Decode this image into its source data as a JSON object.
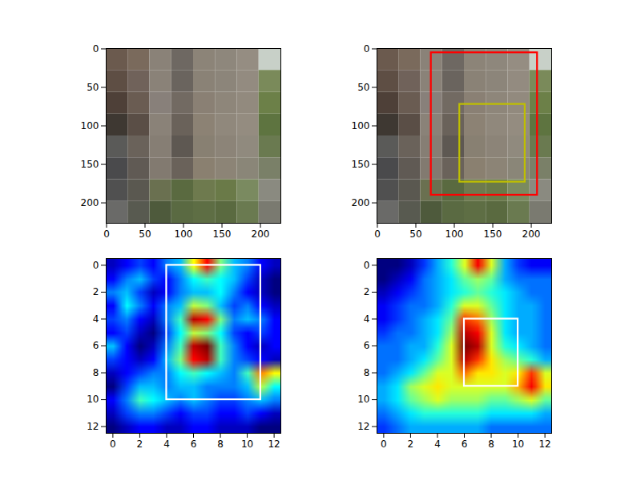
{
  "chart_data": [
    {
      "type": "image",
      "xlim": [
        -0.5,
        226.5
      ],
      "ylim": [
        226.5,
        -0.5
      ],
      "xticks": [
        0,
        50,
        100,
        150,
        200
      ],
      "yticks": [
        0,
        50,
        100,
        150,
        200
      ],
      "pixels": [
        [
          "#6b5a4e",
          "#7a6a5c",
          "#8a8278",
          "#6e6862",
          "#8c8478",
          "#8e877c",
          "#958d82",
          "#c8d0c8"
        ],
        [
          "#5e4e44",
          "#70625a",
          "#8a8278",
          "#6a645e",
          "#8a8276",
          "#8c857a",
          "#938b80",
          "#7a8a5a"
        ],
        [
          "#4e4038",
          "#6a5c52",
          "#88807a",
          "#726a62",
          "#8a8074",
          "#8e867a",
          "#928a7e",
          "#6c8048"
        ],
        [
          "#3e3832",
          "#5a4e46",
          "#8a8278",
          "#6a625a",
          "#8c8274",
          "#90887c",
          "#948c80",
          "#5e7440"
        ],
        [
          "#5a5a58",
          "#6a625a",
          "#867e74",
          "#5e5852",
          "#888072",
          "#8c8478",
          "#908a7e",
          "#6a7a50"
        ],
        [
          "#4a4a4c",
          "#605a54",
          "#827a70",
          "#6a625a",
          "#8a8070",
          "#8c8476",
          "#8a8678",
          "#7a8068"
        ],
        [
          "#505050",
          "#5a5850",
          "#6a7050",
          "#5a6a40",
          "#6e7a4e",
          "#6a7a48",
          "#7a8a60",
          "#8a8a80"
        ],
        [
          "#6a6a68",
          "#585a50",
          "#4e5a3c",
          "#5a6a42",
          "#5e6e44",
          "#5a6a40",
          "#6a7a50",
          "#7a7a70"
        ]
      ],
      "boxes": []
    },
    {
      "type": "image",
      "xlim": [
        -0.5,
        226.5
      ],
      "ylim": [
        226.5,
        -0.5
      ],
      "xticks": [
        0,
        50,
        100,
        150,
        200
      ],
      "yticks": [
        0,
        50,
        100,
        150,
        200
      ],
      "pixels": [
        [
          "#6b5a4e",
          "#7a6a5c",
          "#8a8278",
          "#6e6862",
          "#8c8478",
          "#8e877c",
          "#958d82",
          "#c8d0c8"
        ],
        [
          "#5e4e44",
          "#70625a",
          "#8a8278",
          "#6a645e",
          "#8a8276",
          "#8c857a",
          "#938b80",
          "#7a8a5a"
        ],
        [
          "#4e4038",
          "#6a5c52",
          "#88807a",
          "#726a62",
          "#8a8074",
          "#8e867a",
          "#928a7e",
          "#6c8048"
        ],
        [
          "#3e3832",
          "#5a4e46",
          "#8a8278",
          "#6a625a",
          "#8c8274",
          "#90887c",
          "#948c80",
          "#5e7440"
        ],
        [
          "#5a5a58",
          "#6a625a",
          "#867e74",
          "#5e5852",
          "#888072",
          "#8c8478",
          "#908a7e",
          "#6a7a50"
        ],
        [
          "#4a4a4c",
          "#605a54",
          "#827a70",
          "#6a625a",
          "#8a8070",
          "#8c8476",
          "#8a8678",
          "#7a8068"
        ],
        [
          "#505050",
          "#5a5850",
          "#6a7050",
          "#5a6a40",
          "#6e7a4e",
          "#6a7a48",
          "#7a8a60",
          "#8a8a80"
        ],
        [
          "#6a6a68",
          "#585a50",
          "#4e5a3c",
          "#5a6a42",
          "#5e6e44",
          "#5a6a40",
          "#6a7a50",
          "#7a7a70"
        ]
      ],
      "boxes": [
        {
          "x1": 70,
          "x2": 208,
          "y1": 5,
          "y2": 190,
          "color": "#ff0000"
        },
        {
          "x1": 107,
          "x2": 192,
          "y1": 72,
          "y2": 173,
          "color": "#bfbf00"
        }
      ]
    },
    {
      "type": "heatmap",
      "xlim": [
        -0.5,
        12.5
      ],
      "ylim": [
        12.5,
        -0.5
      ],
      "xticks": [
        0,
        2,
        4,
        6,
        8,
        10,
        12
      ],
      "yticks": [
        0,
        2,
        4,
        6,
        8,
        10,
        12
      ],
      "cells": [
        [
          0.15,
          0.2,
          0.25,
          0.2,
          0.3,
          0.35,
          0.6,
          0.8,
          0.5,
          0.35,
          0.3,
          0.2,
          0.15
        ],
        [
          0.2,
          0.3,
          0.35,
          0.25,
          0.2,
          0.3,
          0.4,
          0.45,
          0.4,
          0.35,
          0.25,
          0.15,
          0.1
        ],
        [
          0.3,
          0.35,
          0.25,
          0.15,
          0.2,
          0.3,
          0.35,
          0.35,
          0.4,
          0.3,
          0.2,
          0.15,
          0.1
        ],
        [
          0.2,
          0.4,
          0.3,
          0.2,
          0.3,
          0.35,
          0.55,
          0.5,
          0.35,
          0.25,
          0.3,
          0.2,
          0.15
        ],
        [
          0.25,
          0.3,
          0.2,
          0.15,
          0.3,
          0.45,
          0.85,
          0.8,
          0.5,
          0.3,
          0.35,
          0.3,
          0.2
        ],
        [
          0.2,
          0.25,
          0.15,
          0.1,
          0.25,
          0.4,
          0.55,
          0.5,
          0.4,
          0.25,
          0.2,
          0.25,
          0.2
        ],
        [
          0.35,
          0.2,
          0.1,
          0.15,
          0.3,
          0.45,
          0.85,
          0.9,
          0.45,
          0.3,
          0.2,
          0.15,
          0.2
        ],
        [
          0.25,
          0.2,
          0.15,
          0.2,
          0.35,
          0.5,
          0.8,
          0.85,
          0.45,
          0.3,
          0.25,
          0.2,
          0.15
        ],
        [
          0.15,
          0.2,
          0.25,
          0.3,
          0.3,
          0.4,
          0.45,
          0.4,
          0.35,
          0.3,
          0.45,
          0.7,
          0.6
        ],
        [
          0.1,
          0.25,
          0.35,
          0.35,
          0.3,
          0.35,
          0.35,
          0.3,
          0.3,
          0.3,
          0.35,
          0.55,
          0.4
        ],
        [
          0.2,
          0.3,
          0.45,
          0.4,
          0.35,
          0.3,
          0.35,
          0.3,
          0.25,
          0.25,
          0.3,
          0.35,
          0.3
        ],
        [
          0.15,
          0.25,
          0.3,
          0.3,
          0.25,
          0.2,
          0.25,
          0.25,
          0.2,
          0.2,
          0.25,
          0.2,
          0.15
        ],
        [
          0.1,
          0.15,
          0.2,
          0.2,
          0.15,
          0.15,
          0.2,
          0.2,
          0.15,
          0.15,
          0.15,
          0.1,
          0.1
        ]
      ],
      "boxes": [
        {
          "x1": 4,
          "x2": 11,
          "y1": 0,
          "y2": 10,
          "color": "#ffffff"
        }
      ]
    },
    {
      "type": "heatmap",
      "xlim": [
        -0.5,
        12.5
      ],
      "ylim": [
        12.5,
        -0.5
      ],
      "xticks": [
        0,
        2,
        4,
        6,
        8,
        10,
        12
      ],
      "yticks": [
        0,
        2,
        4,
        6,
        8,
        10,
        12
      ],
      "cells": [
        [
          0.1,
          0.1,
          0.15,
          0.25,
          0.35,
          0.45,
          0.6,
          0.85,
          0.6,
          0.35,
          0.25,
          0.2,
          0.2
        ],
        [
          0.1,
          0.15,
          0.2,
          0.3,
          0.35,
          0.4,
          0.5,
          0.55,
          0.5,
          0.35,
          0.3,
          0.3,
          0.3
        ],
        [
          0.15,
          0.2,
          0.25,
          0.3,
          0.35,
          0.4,
          0.45,
          0.5,
          0.45,
          0.4,
          0.35,
          0.3,
          0.3
        ],
        [
          0.2,
          0.25,
          0.3,
          0.3,
          0.35,
          0.45,
          0.6,
          0.6,
          0.5,
          0.4,
          0.35,
          0.35,
          0.3
        ],
        [
          0.2,
          0.25,
          0.3,
          0.35,
          0.4,
          0.5,
          0.8,
          0.75,
          0.55,
          0.4,
          0.35,
          0.35,
          0.3
        ],
        [
          0.25,
          0.3,
          0.3,
          0.35,
          0.4,
          0.55,
          0.9,
          0.85,
          0.6,
          0.4,
          0.35,
          0.35,
          0.3
        ],
        [
          0.3,
          0.3,
          0.35,
          0.35,
          0.45,
          0.6,
          0.95,
          0.9,
          0.6,
          0.45,
          0.4,
          0.35,
          0.3
        ],
        [
          0.3,
          0.3,
          0.35,
          0.4,
          0.5,
          0.6,
          0.9,
          0.8,
          0.65,
          0.55,
          0.5,
          0.45,
          0.35
        ],
        [
          0.3,
          0.35,
          0.4,
          0.5,
          0.6,
          0.6,
          0.75,
          0.65,
          0.65,
          0.6,
          0.65,
          0.8,
          0.6
        ],
        [
          0.35,
          0.4,
          0.55,
          0.6,
          0.65,
          0.6,
          0.6,
          0.6,
          0.6,
          0.6,
          0.7,
          0.85,
          0.65
        ],
        [
          0.35,
          0.4,
          0.5,
          0.55,
          0.6,
          0.55,
          0.55,
          0.55,
          0.5,
          0.5,
          0.55,
          0.6,
          0.5
        ],
        [
          0.3,
          0.35,
          0.4,
          0.45,
          0.45,
          0.45,
          0.45,
          0.45,
          0.4,
          0.4,
          0.4,
          0.4,
          0.35
        ],
        [
          0.25,
          0.3,
          0.35,
          0.35,
          0.35,
          0.35,
          0.35,
          0.35,
          0.3,
          0.3,
          0.3,
          0.3,
          0.3
        ]
      ],
      "boxes": [
        {
          "x1": 6,
          "x2": 10,
          "y1": 4,
          "y2": 9,
          "color": "#ffffff"
        }
      ]
    }
  ]
}
